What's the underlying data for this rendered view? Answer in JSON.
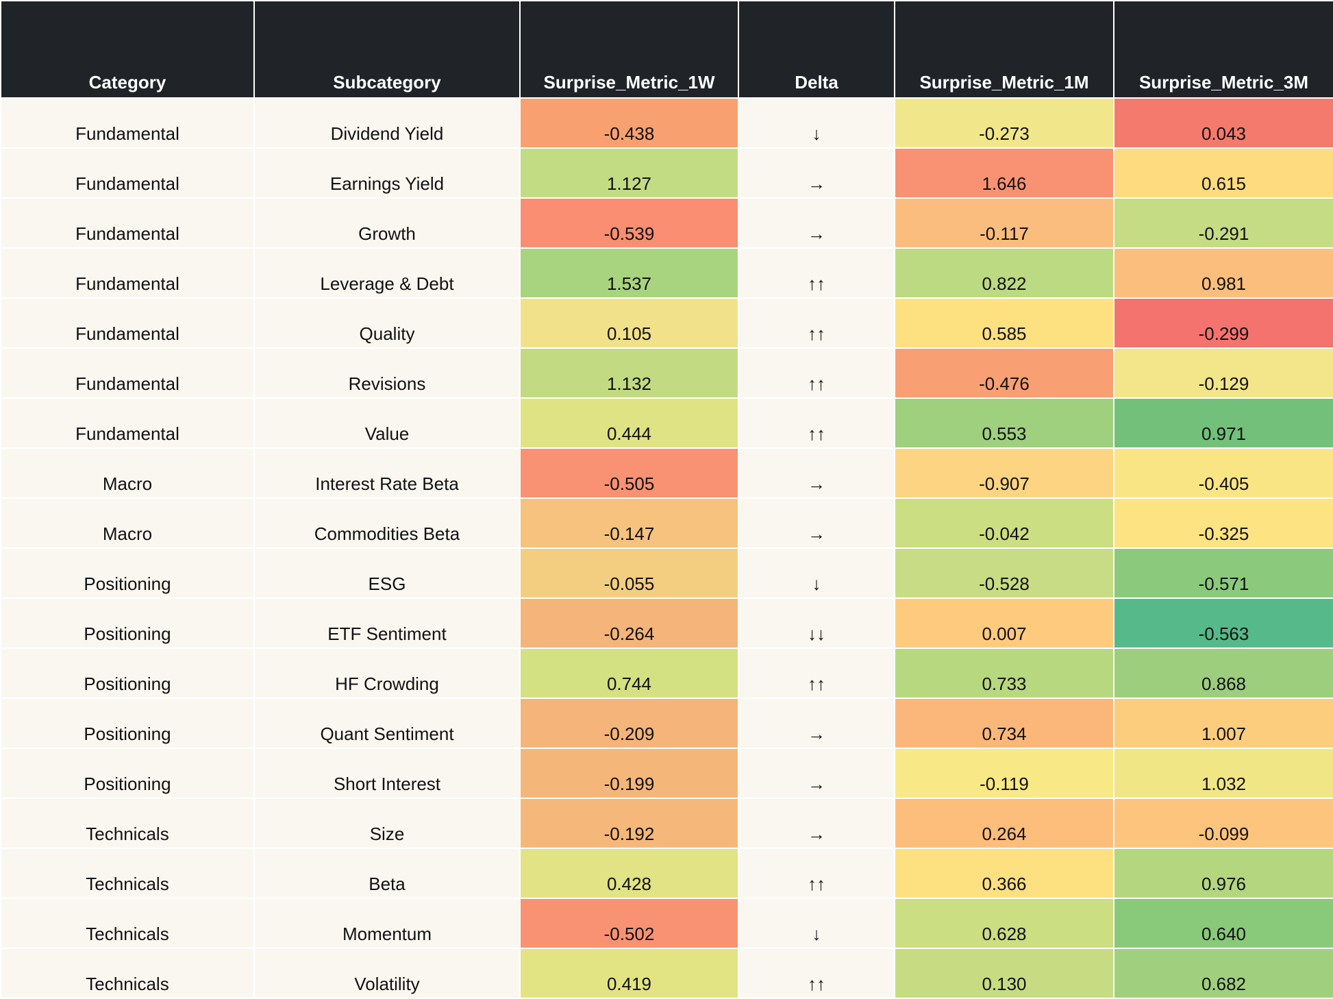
{
  "table": {
    "columns": [
      "Category",
      "Subcategory",
      "Surprise_Metric_1W",
      "Delta",
      "Surprise_Metric_1M",
      "Surprise_Metric_3M"
    ],
    "rows": [
      [
        "Fundamental",
        "Dividend Yield",
        "-0.438",
        "↓",
        "-0.273",
        "0.043"
      ],
      [
        "Fundamental",
        "Earnings Yield",
        "1.127",
        "→",
        "1.646",
        "0.615"
      ],
      [
        "Fundamental",
        "Growth",
        "-0.539",
        "→",
        "-0.117",
        "-0.291"
      ],
      [
        "Fundamental",
        "Leverage & Debt",
        "1.537",
        "↑↑",
        "0.822",
        "0.981"
      ],
      [
        "Fundamental",
        "Quality",
        "0.105",
        "↑↑",
        "0.585",
        "-0.299"
      ],
      [
        "Fundamental",
        "Revisions",
        "1.132",
        "↑↑",
        "-0.476",
        "-0.129"
      ],
      [
        "Fundamental",
        "Value",
        "0.444",
        "↑↑",
        "0.553",
        "0.971"
      ],
      [
        "Macro",
        "Interest Rate Beta",
        "-0.505",
        "→",
        "-0.907",
        "-0.405"
      ],
      [
        "Macro",
        "Commodities Beta",
        "-0.147",
        "→",
        "-0.042",
        "-0.325"
      ],
      [
        "Positioning",
        "ESG",
        "-0.055",
        "↓",
        "-0.528",
        "-0.571"
      ],
      [
        "Positioning",
        "ETF Sentiment",
        "-0.264",
        "↓↓",
        "0.007",
        "-0.563"
      ],
      [
        "Positioning",
        "HF Crowding",
        "0.744",
        "↑↑",
        "0.733",
        "0.868"
      ],
      [
        "Positioning",
        "Quant Sentiment",
        "-0.209",
        "→",
        "0.734",
        "1.007"
      ],
      [
        "Positioning",
        "Short Interest",
        "-0.199",
        "→",
        "-0.119",
        "1.032"
      ],
      [
        "Technicals",
        "Size",
        "-0.192",
        "→",
        "0.264",
        "-0.099"
      ],
      [
        "Technicals",
        "Beta",
        "0.428",
        "↑↑",
        "0.366",
        "0.976"
      ],
      [
        "Technicals",
        "Momentum",
        "-0.502",
        "↓",
        "0.628",
        "0.640"
      ],
      [
        "Technicals",
        "Volatility",
        "0.419",
        "↑↑",
        "0.130",
        "0.682"
      ]
    ],
    "cell_colors": [
      [
        "#f9a070",
        "#f2e68a",
        "#f47a6e"
      ],
      [
        "#c2dc84",
        "#f99272",
        "#fddb7e"
      ],
      [
        "#f98e72",
        "#fbbd7d",
        "#c5dc84"
      ],
      [
        "#a9d47f",
        "#bcda82",
        "#fbbe7c"
      ],
      [
        "#f1e18a",
        "#fde080",
        "#f5736e"
      ],
      [
        "#c2db82",
        "#f99f74",
        "#f2e58a"
      ],
      [
        "#dfe384",
        "#9ed07e",
        "#72c07a"
      ],
      [
        "#f99272",
        "#fcd482",
        "#fae584"
      ],
      [
        "#f6c27e",
        "#ccde82",
        "#fde381"
      ],
      [
        "#f3ce80",
        "#c7dc84",
        "#8bca7c"
      ],
      [
        "#f5b47a",
        "#fdca7e",
        "#55b98a"
      ],
      [
        "#d4e182",
        "#b8d880",
        "#9cce7e"
      ],
      [
        "#f5b47a",
        "#fbb77a",
        "#fdcd7e"
      ],
      [
        "#f5b67a",
        "#f8e886",
        "#f0e686"
      ],
      [
        "#f5b87a",
        "#fdbd7b",
        "#fdc47d"
      ],
      [
        "#e1e384",
        "#fde080",
        "#b3d67f"
      ],
      [
        "#f99272",
        "#cbde82",
        "#89c97a"
      ],
      [
        "#e2e484",
        "#c7dc82",
        "#a0d07e"
      ]
    ]
  }
}
